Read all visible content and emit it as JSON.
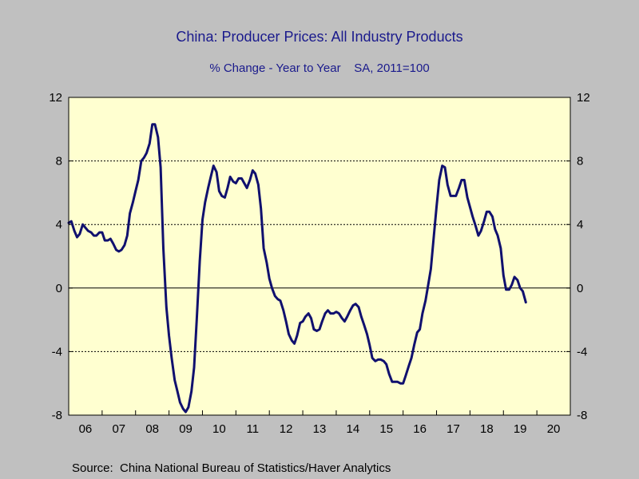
{
  "header": {
    "title": "China: Producer Prices: All Industry Products",
    "subtitle": "% Change - Year to Year    SA, 2011=100"
  },
  "footer": {
    "source": "Source:  China National Bureau of Statistics/Haver Analytics"
  },
  "colors": {
    "series": "#10106e",
    "plot_background": "#ffffd0",
    "page_background": "#c0c0c0",
    "title": "#1a1a8c"
  },
  "chart_data": {
    "type": "line",
    "title": "China: Producer Prices: All Industry Products",
    "subtitle": "% Change - Year to Year    SA, 2011=100",
    "xlabel": "",
    "ylabel": "",
    "ylim": [
      -8,
      12
    ],
    "xlim": [
      2006.0,
      2021.0
    ],
    "y_ticks": [
      -8,
      -4,
      0,
      4,
      8,
      12
    ],
    "y_tick_labels": [
      "-8",
      "-4",
      "0",
      "4",
      "8",
      "12"
    ],
    "x_tick_labels": [
      "06",
      "07",
      "08",
      "09",
      "10",
      "11",
      "12",
      "13",
      "14",
      "15",
      "16",
      "17",
      "18",
      "19",
      "20"
    ],
    "grid": "horizontal dashed at y-ticks",
    "dual_y_axis": true,
    "series": [
      {
        "points": [
          [
            2006.0,
            4.1
          ],
          [
            2006.08,
            4.2
          ],
          [
            2006.17,
            3.6
          ],
          [
            2006.25,
            3.2
          ],
          [
            2006.33,
            3.4
          ],
          [
            2006.42,
            4.0
          ],
          [
            2006.5,
            3.8
          ],
          [
            2006.58,
            3.6
          ],
          [
            2006.67,
            3.5
          ],
          [
            2006.75,
            3.3
          ],
          [
            2006.83,
            3.3
          ],
          [
            2006.92,
            3.5
          ],
          [
            2007.0,
            3.5
          ],
          [
            2007.08,
            3.0
          ],
          [
            2007.17,
            3.0
          ],
          [
            2007.25,
            3.1
          ],
          [
            2007.33,
            2.8
          ],
          [
            2007.42,
            2.4
          ],
          [
            2007.5,
            2.3
          ],
          [
            2007.58,
            2.4
          ],
          [
            2007.67,
            2.7
          ],
          [
            2007.75,
            3.3
          ],
          [
            2007.83,
            4.7
          ],
          [
            2007.92,
            5.4
          ],
          [
            2008.0,
            6.1
          ],
          [
            2008.08,
            6.8
          ],
          [
            2008.17,
            8.0
          ],
          [
            2008.25,
            8.2
          ],
          [
            2008.33,
            8.5
          ],
          [
            2008.42,
            9.1
          ],
          [
            2008.5,
            10.3
          ],
          [
            2008.58,
            10.3
          ],
          [
            2008.67,
            9.5
          ],
          [
            2008.75,
            7.6
          ],
          [
            2008.83,
            2.5
          ],
          [
            2008.92,
            -1.2
          ],
          [
            2009.0,
            -3.0
          ],
          [
            2009.08,
            -4.4
          ],
          [
            2009.17,
            -5.8
          ],
          [
            2009.25,
            -6.5
          ],
          [
            2009.33,
            -7.2
          ],
          [
            2009.42,
            -7.6
          ],
          [
            2009.5,
            -7.8
          ],
          [
            2009.58,
            -7.5
          ],
          [
            2009.67,
            -6.5
          ],
          [
            2009.75,
            -5.0
          ],
          [
            2009.83,
            -2.0
          ],
          [
            2009.92,
            1.7
          ],
          [
            2010.0,
            4.3
          ],
          [
            2010.08,
            5.4
          ],
          [
            2010.17,
            6.3
          ],
          [
            2010.25,
            7.0
          ],
          [
            2010.33,
            7.7
          ],
          [
            2010.42,
            7.3
          ],
          [
            2010.5,
            6.1
          ],
          [
            2010.58,
            5.8
          ],
          [
            2010.67,
            5.7
          ],
          [
            2010.75,
            6.3
          ],
          [
            2010.83,
            7.0
          ],
          [
            2010.92,
            6.7
          ],
          [
            2011.0,
            6.6
          ],
          [
            2011.08,
            6.9
          ],
          [
            2011.17,
            6.9
          ],
          [
            2011.25,
            6.6
          ],
          [
            2011.33,
            6.3
          ],
          [
            2011.42,
            6.8
          ],
          [
            2011.5,
            7.4
          ],
          [
            2011.58,
            7.2
          ],
          [
            2011.67,
            6.5
          ],
          [
            2011.75,
            5.0
          ],
          [
            2011.83,
            2.5
          ],
          [
            2011.92,
            1.6
          ],
          [
            2012.0,
            0.6
          ],
          [
            2012.08,
            0.0
          ],
          [
            2012.17,
            -0.5
          ],
          [
            2012.25,
            -0.7
          ],
          [
            2012.33,
            -0.8
          ],
          [
            2012.42,
            -1.4
          ],
          [
            2012.5,
            -2.1
          ],
          [
            2012.58,
            -2.9
          ],
          [
            2012.67,
            -3.3
          ],
          [
            2012.75,
            -3.5
          ],
          [
            2012.83,
            -3.0
          ],
          [
            2012.92,
            -2.2
          ],
          [
            2013.0,
            -2.1
          ],
          [
            2013.08,
            -1.8
          ],
          [
            2013.17,
            -1.6
          ],
          [
            2013.25,
            -1.9
          ],
          [
            2013.33,
            -2.6
          ],
          [
            2013.42,
            -2.7
          ],
          [
            2013.5,
            -2.6
          ],
          [
            2013.58,
            -2.1
          ],
          [
            2013.67,
            -1.6
          ],
          [
            2013.75,
            -1.4
          ],
          [
            2013.83,
            -1.6
          ],
          [
            2013.92,
            -1.6
          ],
          [
            2014.0,
            -1.5
          ],
          [
            2014.08,
            -1.6
          ],
          [
            2014.17,
            -1.9
          ],
          [
            2014.25,
            -2.1
          ],
          [
            2014.33,
            -1.8
          ],
          [
            2014.42,
            -1.4
          ],
          [
            2014.5,
            -1.1
          ],
          [
            2014.58,
            -1.0
          ],
          [
            2014.67,
            -1.2
          ],
          [
            2014.75,
            -1.8
          ],
          [
            2014.83,
            -2.3
          ],
          [
            2014.92,
            -2.9
          ],
          [
            2015.0,
            -3.6
          ],
          [
            2015.08,
            -4.4
          ],
          [
            2015.17,
            -4.6
          ],
          [
            2015.25,
            -4.5
          ],
          [
            2015.33,
            -4.5
          ],
          [
            2015.42,
            -4.6
          ],
          [
            2015.5,
            -4.8
          ],
          [
            2015.58,
            -5.4
          ],
          [
            2015.67,
            -5.9
          ],
          [
            2015.75,
            -5.9
          ],
          [
            2015.83,
            -5.9
          ],
          [
            2015.92,
            -6.0
          ],
          [
            2016.0,
            -6.0
          ],
          [
            2016.08,
            -5.5
          ],
          [
            2016.17,
            -4.9
          ],
          [
            2016.25,
            -4.4
          ],
          [
            2016.33,
            -3.6
          ],
          [
            2016.42,
            -2.8
          ],
          [
            2016.5,
            -2.6
          ],
          [
            2016.58,
            -1.6
          ],
          [
            2016.67,
            -0.8
          ],
          [
            2016.75,
            0.2
          ],
          [
            2016.83,
            1.2
          ],
          [
            2016.92,
            3.3
          ],
          [
            2017.0,
            5.1
          ],
          [
            2017.08,
            6.8
          ],
          [
            2017.17,
            7.7
          ],
          [
            2017.25,
            7.6
          ],
          [
            2017.33,
            6.5
          ],
          [
            2017.42,
            5.8
          ],
          [
            2017.5,
            5.8
          ],
          [
            2017.58,
            5.8
          ],
          [
            2017.67,
            6.3
          ],
          [
            2017.75,
            6.8
          ],
          [
            2017.83,
            6.8
          ],
          [
            2017.92,
            5.7
          ],
          [
            2018.0,
            5.1
          ],
          [
            2018.08,
            4.5
          ],
          [
            2018.17,
            3.9
          ],
          [
            2018.25,
            3.3
          ],
          [
            2018.33,
            3.6
          ],
          [
            2018.42,
            4.2
          ],
          [
            2018.5,
            4.8
          ],
          [
            2018.58,
            4.8
          ],
          [
            2018.67,
            4.5
          ],
          [
            2018.75,
            3.7
          ],
          [
            2018.83,
            3.3
          ],
          [
            2018.92,
            2.5
          ],
          [
            2019.0,
            0.8
          ],
          [
            2019.08,
            -0.1
          ],
          [
            2019.17,
            -0.1
          ],
          [
            2019.25,
            0.2
          ],
          [
            2019.33,
            0.7
          ],
          [
            2019.42,
            0.5
          ],
          [
            2019.5,
            0.0
          ],
          [
            2019.58,
            -0.2
          ],
          [
            2019.67,
            -0.9
          ]
        ]
      }
    ]
  }
}
